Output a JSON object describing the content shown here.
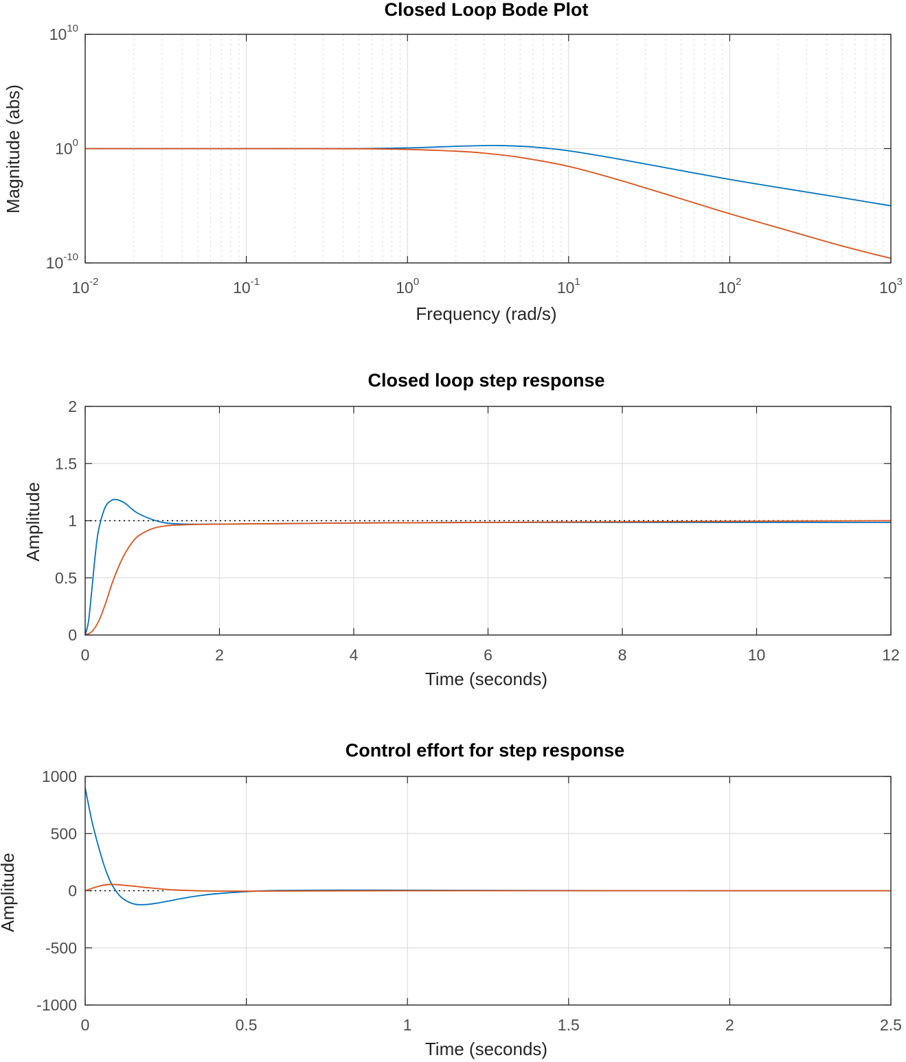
{
  "colors": {
    "series1": "#0072BD",
    "series2": "#D95319",
    "reference": "#000000"
  },
  "chart_data": [
    {
      "type": "line",
      "title": "Closed Loop Bode Plot",
      "xlabel": "Frequency  (rad/s)",
      "ylabel": "Magnitude (abs)",
      "xscale": "log",
      "yscale": "log",
      "xlim": [
        0.01,
        1000
      ],
      "ylim": [
        1e-10,
        10000000000.0
      ],
      "grid": true,
      "legend": "none",
      "x_ticks": [
        {
          "base": "10",
          "exp": "-2",
          "value": 0.01
        },
        {
          "base": "10",
          "exp": "-1",
          "value": 0.1
        },
        {
          "base": "10",
          "exp": "0",
          "value": 1
        },
        {
          "base": "10",
          "exp": "1",
          "value": 10
        },
        {
          "base": "10",
          "exp": "2",
          "value": 100
        },
        {
          "base": "10",
          "exp": "3",
          "value": 1000
        }
      ],
      "y_ticks": [
        {
          "base": "10",
          "exp": "10",
          "value": 10000000000.0
        },
        {
          "base": "10",
          "exp": "0",
          "value": 1
        },
        {
          "base": "10",
          "exp": "-10",
          "value": 1e-10
        }
      ],
      "series": [
        {
          "x": [
            0.01,
            0.1,
            0.5,
            1,
            2,
            3,
            4,
            6,
            10,
            20,
            50,
            100,
            200,
            500,
            1000
          ],
          "y": [
            1,
            1,
            1.02,
            1.15,
            1.6,
            1.85,
            1.8,
            1.4,
            0.65,
            0.13,
            0.012,
            0.002,
            0.0004,
            5e-05,
            1e-05
          ]
        },
        {
          "x": [
            0.01,
            0.1,
            0.5,
            1,
            2,
            3,
            5,
            10,
            20,
            50,
            100,
            200,
            500,
            1000
          ],
          "y": [
            1,
            1,
            0.97,
            0.85,
            0.6,
            0.4,
            0.17,
            0.028,
            0.002,
            4e-05,
            2e-06,
            1.2e-07,
            3e-09,
            2.5e-10
          ]
        }
      ]
    },
    {
      "type": "line",
      "title": "Closed loop step response",
      "xlabel": "Time (seconds)",
      "ylabel": "Amplitude",
      "xlim": [
        0,
        12
      ],
      "ylim": [
        0,
        2
      ],
      "grid": true,
      "legend": "none",
      "x_ticks": [
        "0",
        "2",
        "4",
        "6",
        "8",
        "10",
        "12"
      ],
      "y_ticks": [
        "0",
        "0.5",
        "1",
        "1.5",
        "2"
      ],
      "reference_line": {
        "y": 1,
        "x": [
          0,
          12
        ]
      },
      "series": [
        {
          "x": [
            0,
            0.05,
            0.1,
            0.15,
            0.2,
            0.3,
            0.4,
            0.45,
            0.5,
            0.6,
            0.7,
            0.8,
            1.0,
            1.2,
            1.5,
            2,
            3,
            4,
            6,
            8,
            10,
            12
          ],
          "y": [
            0,
            0.12,
            0.4,
            0.7,
            0.92,
            1.12,
            1.18,
            1.185,
            1.18,
            1.15,
            1.1,
            1.06,
            1.01,
            0.98,
            0.97,
            0.97,
            0.975,
            0.98,
            0.985,
            0.985,
            0.985,
            0.985
          ]
        },
        {
          "x": [
            0,
            0.1,
            0.2,
            0.3,
            0.4,
            0.5,
            0.6,
            0.7,
            0.8,
            1.0,
            1.2,
            1.5,
            2,
            3,
            4,
            6,
            8,
            10,
            12
          ],
          "y": [
            0,
            0.03,
            0.12,
            0.27,
            0.45,
            0.6,
            0.72,
            0.81,
            0.87,
            0.93,
            0.955,
            0.965,
            0.97,
            0.975,
            0.98,
            0.985,
            0.99,
            0.995,
            1.0
          ]
        }
      ]
    },
    {
      "type": "line",
      "title": "Control effort for step response",
      "xlabel": "Time (seconds)",
      "ylabel": "Amplitude",
      "xlim": [
        0,
        2.5
      ],
      "ylim": [
        -1000,
        1000
      ],
      "grid": true,
      "legend": "none",
      "x_ticks": [
        "0",
        "0.5",
        "1",
        "1.5",
        "2",
        "2.5"
      ],
      "y_ticks": [
        "-1000",
        "-500",
        "0",
        "500",
        "1000"
      ],
      "reference_line": {
        "y": 0,
        "x": [
          0,
          0.25
        ]
      },
      "series": [
        {
          "x": [
            0,
            0.02,
            0.04,
            0.06,
            0.08,
            0.1,
            0.12,
            0.15,
            0.18,
            0.22,
            0.25,
            0.3,
            0.35,
            0.4,
            0.5,
            0.6,
            0.8,
            1.0,
            1.5,
            2.0,
            2.5
          ],
          "y": [
            900,
            620,
            400,
            210,
            70,
            -20,
            -75,
            -115,
            -122,
            -110,
            -95,
            -68,
            -45,
            -28,
            -8,
            2,
            5,
            4,
            1,
            0,
            0
          ]
        },
        {
          "x": [
            0,
            0.02,
            0.04,
            0.06,
            0.08,
            0.1,
            0.12,
            0.15,
            0.2,
            0.25,
            0.3,
            0.4,
            0.5,
            0.7,
            1.0,
            1.5,
            2.0,
            2.5
          ],
          "y": [
            0,
            20,
            38,
            50,
            55,
            53,
            48,
            40,
            25,
            12,
            4,
            -3,
            -4,
            -2,
            0,
            0,
            0,
            0
          ]
        }
      ]
    }
  ]
}
